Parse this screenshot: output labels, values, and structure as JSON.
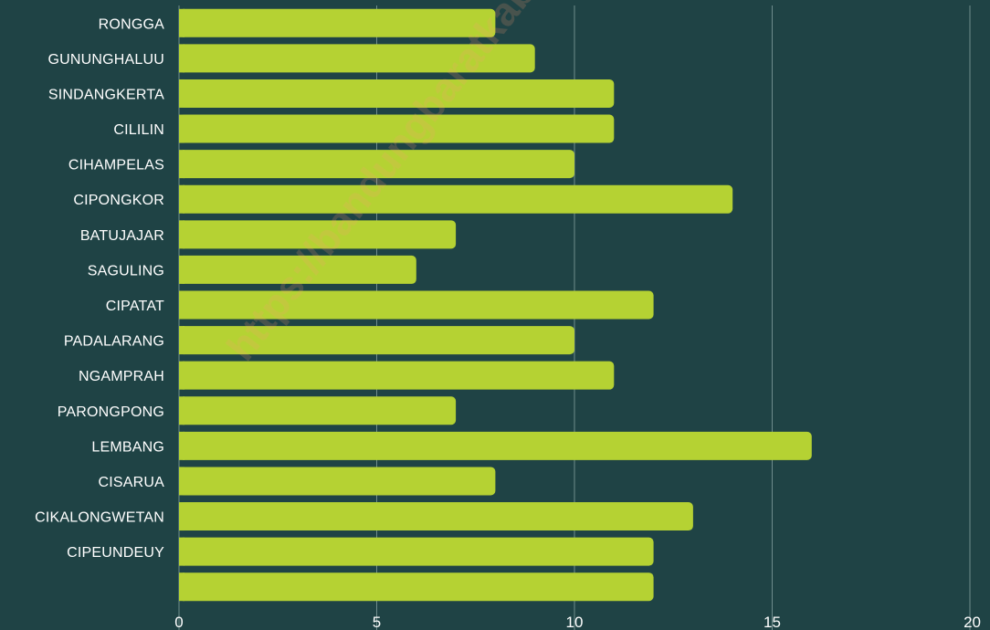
{
  "watermark": "https://bandungbaratkab.",
  "chart_data": {
    "type": "bar",
    "orientation": "horizontal",
    "categories": [
      "RONGGA",
      "GUNUNGHALUU",
      "SINDANGKERTA",
      "CILILIN",
      "CIHAMPELAS",
      "CIPONGKOR",
      "BATUJAJAR",
      "SAGULING",
      "CIPATAT",
      "PADALARANG",
      "NGAMPRAH",
      "PARONGPONG",
      "LEMBANG",
      "CISARUA",
      "CIKALONGWETAN",
      "CIPEUNDEUY",
      ""
    ],
    "values": [
      8,
      9,
      11,
      11,
      10,
      14,
      7,
      6,
      12,
      10,
      11,
      7,
      16,
      8,
      13,
      12,
      12
    ],
    "xlim": [
      0,
      20
    ],
    "xticks": [
      "0",
      "5",
      "10",
      "15",
      "20"
    ],
    "grid": true,
    "colors": {
      "background": "#1f4345",
      "bar": "#b5d233",
      "grid": "#6f8c8c",
      "text": "#ffffff"
    }
  }
}
